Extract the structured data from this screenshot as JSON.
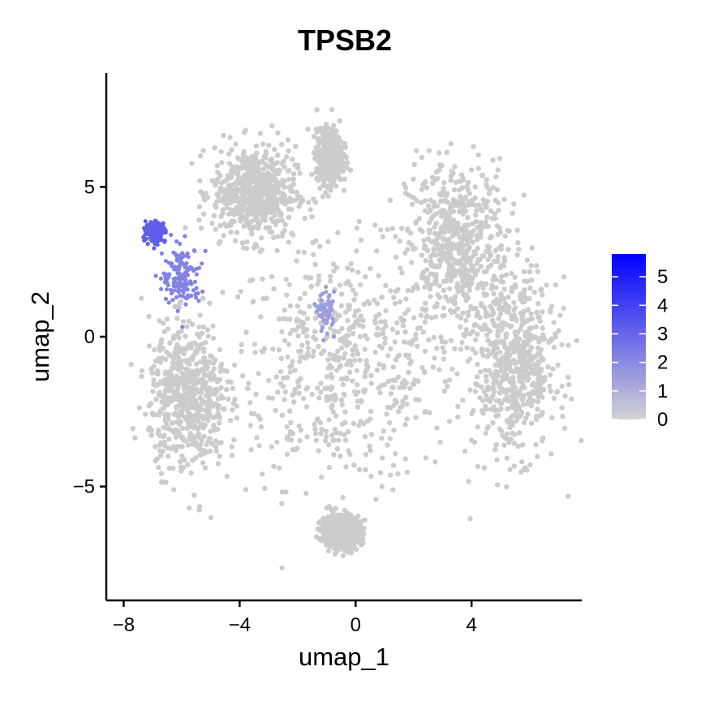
{
  "chart_data": {
    "type": "scatter",
    "title": "TPSB2",
    "xlabel": "umap_1",
    "ylabel": "umap_2",
    "xlim": [
      -8.6,
      7.8
    ],
    "ylim": [
      -8.8,
      8.8
    ],
    "x_ticks": [
      -8,
      -4,
      0,
      4
    ],
    "x_tick_labels": [
      "−8",
      "−4",
      "0",
      "4"
    ],
    "y_ticks": [
      -5,
      0,
      5
    ],
    "y_tick_labels": [
      "−5",
      "0",
      "5"
    ],
    "grid": false,
    "legend": {
      "placement": "right",
      "type": "colorbar",
      "min": 0,
      "max": 5.8,
      "ticks": [
        0,
        1,
        2,
        3,
        4,
        5
      ],
      "tick_labels": [
        "0",
        "1",
        "2",
        "3",
        "4",
        "5"
      ],
      "low_color": "#d3d3d3",
      "high_color": "#0000ff"
    },
    "point_color_default": "#cccccc",
    "regions": [
      {
        "kind": "expression_none",
        "center": [
          -0.5,
          -1.0
        ],
        "spread": [
          3.6,
          3.6
        ]
      },
      {
        "kind": "expression_none",
        "center": [
          3.5,
          3.0
        ],
        "spread": [
          1.6,
          2.6
        ]
      },
      {
        "kind": "expression_none",
        "center": [
          -3.5,
          4.8
        ],
        "spread": [
          1.3,
          1.4
        ]
      },
      {
        "kind": "expression_none",
        "center": [
          -0.9,
          6.0
        ],
        "spread": [
          0.4,
          0.8
        ]
      },
      {
        "kind": "expression_none",
        "center": [
          -5.8,
          -2.0
        ],
        "spread": [
          1.2,
          2.2
        ]
      },
      {
        "kind": "expression_none",
        "center": [
          5.5,
          -1.0
        ],
        "spread": [
          1.3,
          2.6
        ]
      },
      {
        "kind": "expression_none",
        "center": [
          -0.5,
          -6.5
        ],
        "spread": [
          0.6,
          0.5
        ]
      },
      {
        "kind": "expression_high",
        "center": [
          -6.9,
          3.5
        ],
        "spread": [
          0.3,
          0.3
        ],
        "expression": 3.2
      },
      {
        "kind": "expression_mid",
        "center": [
          -6.0,
          2.0
        ],
        "spread": [
          0.6,
          0.9
        ],
        "expression": 2.2
      },
      {
        "kind": "expression_low",
        "center": [
          -1.0,
          0.8
        ],
        "spread": [
          0.25,
          0.6
        ],
        "expression": 1.5
      }
    ]
  }
}
